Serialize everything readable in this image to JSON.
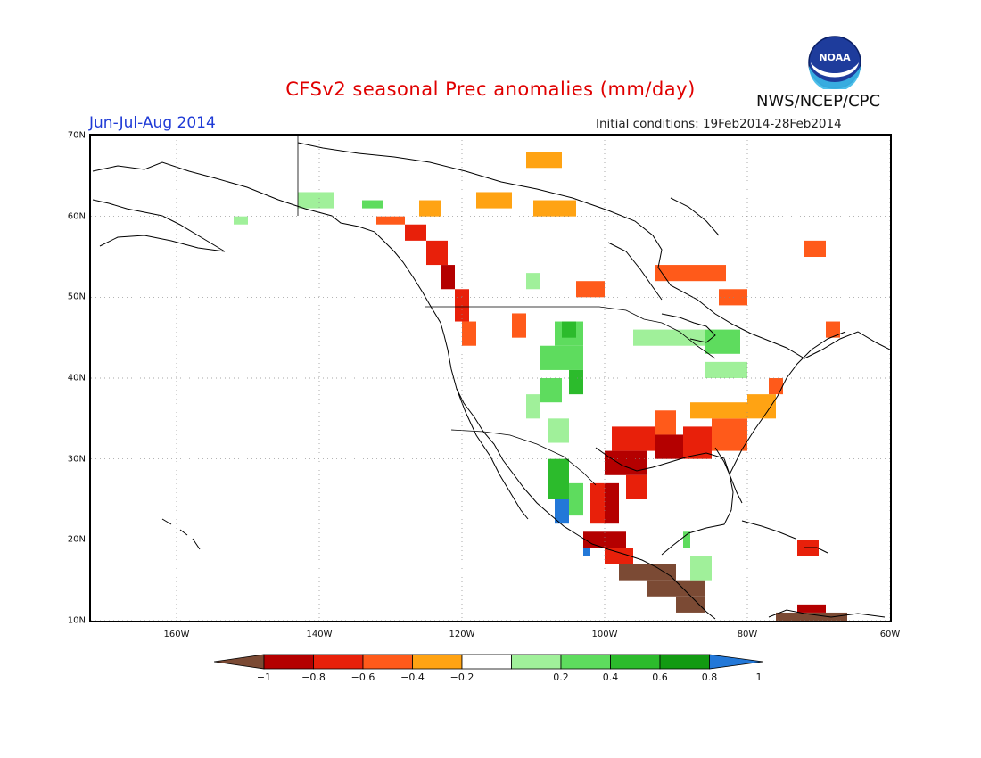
{
  "header": {
    "title": "CFSv2 seasonal Prec anomalies (mm/day)",
    "agency": "NWS/NCEP/CPC",
    "logo_text": "NOAA",
    "period": "Jun-Jul-Aug 2014",
    "initial_conditions": "Initial conditions: 19Feb2014-28Feb2014"
  },
  "map": {
    "lon_range": [
      -172,
      -60
    ],
    "lat_range": [
      10,
      70
    ],
    "x_ticks": [
      {
        "lon": -160,
        "label": "160W"
      },
      {
        "lon": -140,
        "label": "140W"
      },
      {
        "lon": -120,
        "label": "120W"
      },
      {
        "lon": -100,
        "label": "100W"
      },
      {
        "lon": -80,
        "label": "80W"
      },
      {
        "lon": -60,
        "label": "60W"
      }
    ],
    "y_ticks": [
      {
        "lat": 70,
        "label": "70N"
      },
      {
        "lat": 60,
        "label": "60N"
      },
      {
        "lat": 50,
        "label": "50N"
      },
      {
        "lat": 40,
        "label": "40N"
      },
      {
        "lat": 30,
        "label": "30N"
      },
      {
        "lat": 20,
        "label": "20N"
      },
      {
        "lat": 10,
        "label": "10N"
      }
    ],
    "grid": "dotted",
    "colors": {
      "-1": "#7b4a34",
      "-0.8": "#b40000",
      "-0.6": "#e8200a",
      "-0.4": "#ff5a1a",
      "-0.2": "#ffa313",
      "0": "#ffffff",
      "0.2": "#a0f09a",
      "0.4": "#5edc5e",
      "0.6": "#2cbb2c",
      "0.8": "#129a12",
      "1": "#2378d8"
    },
    "anomaly_cells": [
      {
        "lon0": -152,
        "lon1": -150,
        "lat0": 59,
        "lat1": 60,
        "v": 0.2
      },
      {
        "lon0": -143,
        "lon1": -138,
        "lat0": 61,
        "lat1": 63,
        "v": 0.2
      },
      {
        "lon0": -134,
        "lon1": -131,
        "lat0": 61,
        "lat1": 62,
        "v": 0.4
      },
      {
        "lon0": -126,
        "lon1": -123,
        "lat0": 60,
        "lat1": 62,
        "v": -0.2
      },
      {
        "lon0": -118,
        "lon1": -113,
        "lat0": 61,
        "lat1": 63,
        "v": -0.2
      },
      {
        "lon0": -111,
        "lon1": -106,
        "lat0": 66,
        "lat1": 68,
        "v": -0.2
      },
      {
        "lon0": -110,
        "lon1": -104,
        "lat0": 60,
        "lat1": 62,
        "v": -0.2
      },
      {
        "lon0": -132,
        "lon1": -128,
        "lat0": 59,
        "lat1": 60,
        "v": -0.4
      },
      {
        "lon0": -128,
        "lon1": -125,
        "lat0": 57,
        "lat1": 59,
        "v": -0.6
      },
      {
        "lon0": -125,
        "lon1": -122,
        "lat0": 54,
        "lat1": 57,
        "v": -0.6
      },
      {
        "lon0": -123,
        "lon1": -121,
        "lat0": 51,
        "lat1": 54,
        "v": -0.8
      },
      {
        "lon0": -121,
        "lon1": -119,
        "lat0": 47,
        "lat1": 51,
        "v": -0.6
      },
      {
        "lon0": -120,
        "lon1": -118,
        "lat0": 44,
        "lat1": 47,
        "v": -0.4
      },
      {
        "lon0": -113,
        "lon1": -111,
        "lat0": 45,
        "lat1": 48,
        "v": -0.4
      },
      {
        "lon0": -111,
        "lon1": -109,
        "lat0": 51,
        "lat1": 53,
        "v": 0.2
      },
      {
        "lon0": -104,
        "lon1": -100,
        "lat0": 50,
        "lat1": 52,
        "v": -0.4
      },
      {
        "lon0": -93,
        "lon1": -83,
        "lat0": 52,
        "lat1": 54,
        "v": -0.4
      },
      {
        "lon0": -84,
        "lon1": -80,
        "lat0": 49,
        "lat1": 51,
        "v": -0.4
      },
      {
        "lon0": -72,
        "lon1": -69,
        "lat0": 55,
        "lat1": 57,
        "v": -0.4
      },
      {
        "lon0": -69,
        "lon1": -67,
        "lat0": 45,
        "lat1": 47,
        "v": -0.4
      },
      {
        "lon0": -107,
        "lon1": -103,
        "lat0": 44,
        "lat1": 47,
        "v": 0.4
      },
      {
        "lon0": -109,
        "lon1": -103,
        "lat0": 41,
        "lat1": 44,
        "v": 0.4
      },
      {
        "lon0": -106,
        "lon1": -104,
        "lat0": 45,
        "lat1": 47,
        "v": 0.6
      },
      {
        "lon0": -105,
        "lon1": -103,
        "lat0": 38,
        "lat1": 41,
        "v": 0.6
      },
      {
        "lon0": -109,
        "lon1": -106,
        "lat0": 37,
        "lat1": 40,
        "v": 0.4
      },
      {
        "lon0": -111,
        "lon1": -109,
        "lat0": 35,
        "lat1": 38,
        "v": 0.2
      },
      {
        "lon0": -108,
        "lon1": -105,
        "lat0": 32,
        "lat1": 35,
        "v": 0.2
      },
      {
        "lon0": -96,
        "lon1": -86,
        "lat0": 44,
        "lat1": 46,
        "v": 0.2
      },
      {
        "lon0": -86,
        "lon1": -81,
        "lat0": 43,
        "lat1": 46,
        "v": 0.4
      },
      {
        "lon0": -86,
        "lon1": -80,
        "lat0": 40,
        "lat1": 42,
        "v": 0.2
      },
      {
        "lon0": -108,
        "lon1": -105,
        "lat0": 25,
        "lat1": 30,
        "v": 0.6
      },
      {
        "lon0": -107,
        "lon1": -105,
        "lat0": 22,
        "lat1": 25,
        "v": 1
      },
      {
        "lon0": -105,
        "lon1": -103,
        "lat0": 23,
        "lat1": 27,
        "v": 0.4
      },
      {
        "lon0": -103,
        "lon1": -102,
        "lat0": 18,
        "lat1": 19,
        "v": 1
      },
      {
        "lon0": -102,
        "lon1": -100,
        "lat0": 22,
        "lat1": 27,
        "v": -0.6
      },
      {
        "lon0": -100,
        "lon1": -98,
        "lat0": 22,
        "lat1": 27,
        "v": -0.8
      },
      {
        "lon0": -99,
        "lon1": -93,
        "lat0": 31,
        "lat1": 34,
        "v": -0.6
      },
      {
        "lon0": -100,
        "lon1": -94,
        "lat0": 28,
        "lat1": 31,
        "v": -0.8
      },
      {
        "lon0": -97,
        "lon1": -94,
        "lat0": 25,
        "lat1": 28,
        "v": -0.6
      },
      {
        "lon0": -93,
        "lon1": -90,
        "lat0": 33,
        "lat1": 36,
        "v": -0.4
      },
      {
        "lon0": -93,
        "lon1": -89,
        "lat0": 30,
        "lat1": 33,
        "v": -0.8
      },
      {
        "lon0": -89,
        "lon1": -85,
        "lat0": 30,
        "lat1": 34,
        "v": -0.6
      },
      {
        "lon0": -85,
        "lon1": -80,
        "lat0": 31,
        "lat1": 35,
        "v": -0.4
      },
      {
        "lon0": -88,
        "lon1": -80,
        "lat0": 35,
        "lat1": 37,
        "v": -0.2
      },
      {
        "lon0": -80,
        "lon1": -76,
        "lat0": 35,
        "lat1": 38,
        "v": -0.2
      },
      {
        "lon0": -77,
        "lon1": -75,
        "lat0": 38,
        "lat1": 40,
        "v": -0.4
      },
      {
        "lon0": -103,
        "lon1": -97,
        "lat0": 19,
        "lat1": 21,
        "v": -0.8
      },
      {
        "lon0": -100,
        "lon1": -96,
        "lat0": 17,
        "lat1": 19,
        "v": -0.6
      },
      {
        "lon0": -98,
        "lon1": -90,
        "lat0": 15,
        "lat1": 17,
        "v": -1
      },
      {
        "lon0": -94,
        "lon1": -86,
        "lat0": 13,
        "lat1": 15,
        "v": -1
      },
      {
        "lon0": -90,
        "lon1": -86,
        "lat0": 11,
        "lat1": 13,
        "v": -1
      },
      {
        "lon0": -88,
        "lon1": -85,
        "lat0": 15,
        "lat1": 18,
        "v": 0.2
      },
      {
        "lon0": -89,
        "lon1": -88,
        "lat0": 19,
        "lat1": 21,
        "v": 0.4
      },
      {
        "lon0": -73,
        "lon1": -70,
        "lat0": 18,
        "lat1": 20,
        "v": -0.6
      },
      {
        "lon0": -76,
        "lon1": -66,
        "lat0": 10,
        "lat1": 11,
        "v": -1
      },
      {
        "lon0": -73,
        "lon1": -69,
        "lat0": 11,
        "lat1": 12,
        "v": -0.8
      }
    ]
  },
  "colorbar": {
    "labels": [
      "−1",
      "−0.8",
      "−0.6",
      "−0.4",
      "−0.2",
      "0.2",
      "0.4",
      "0.6",
      "0.8",
      "1"
    ],
    "colors": [
      "#7b4a34",
      "#b40000",
      "#e8200a",
      "#ff5a1a",
      "#ffa313",
      "#ffffff",
      "#a0f09a",
      "#5edc5e",
      "#2cbb2c",
      "#129a12",
      "#2378d8"
    ]
  }
}
